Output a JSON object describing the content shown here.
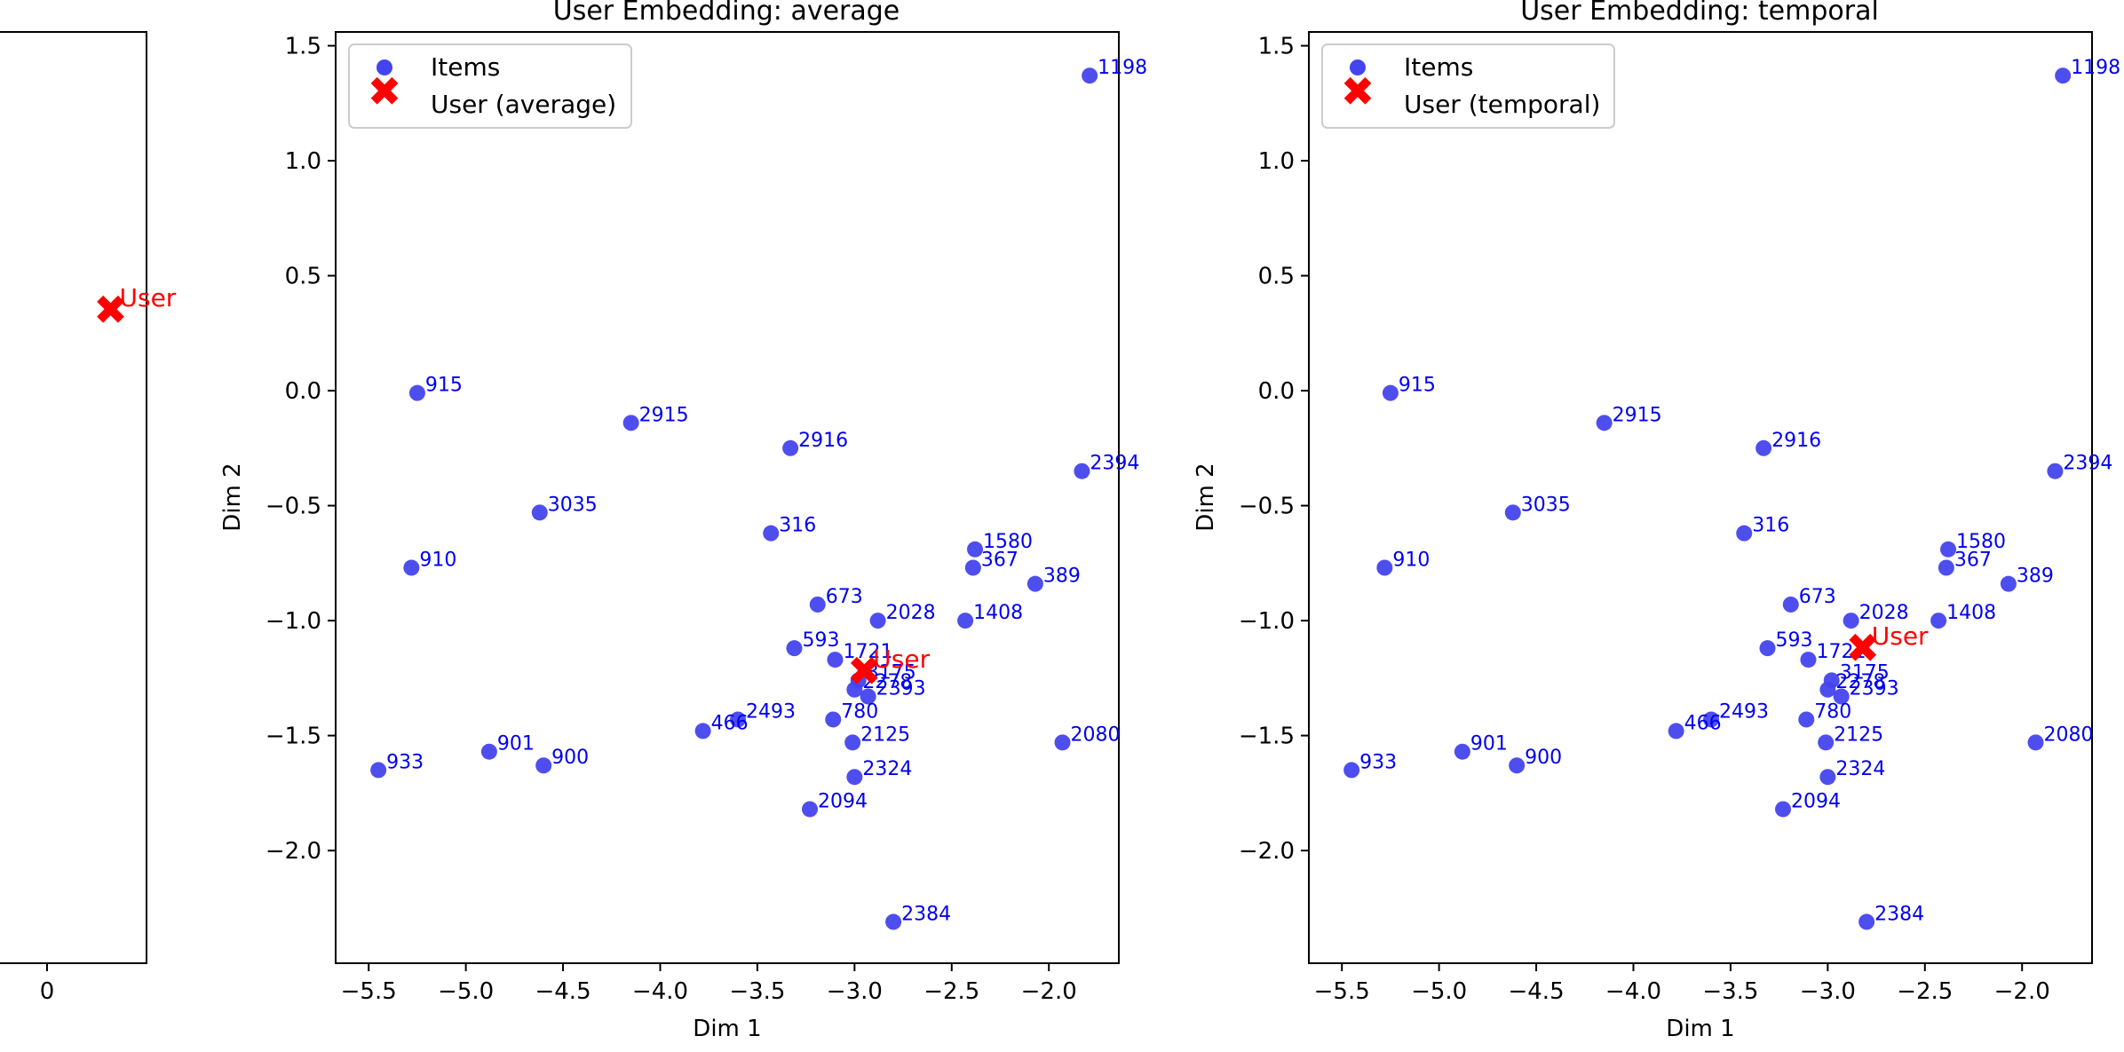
{
  "colors": {
    "points": "#4444ee",
    "point_label": "#0000ee",
    "user": "#ff0000",
    "axis": "#000000"
  },
  "chart_data": [
    {
      "type": "scatter",
      "id": "left-partial",
      "title": "",
      "user_label": "User",
      "x_ticks": [
        {
          "value": 0,
          "label": "0"
        }
      ],
      "user": {
        "x": 0.55,
        "y": 0.34
      }
    },
    {
      "type": "scatter",
      "id": "average",
      "title": "User Embedding: average",
      "xlabel": "Dim 1",
      "ylabel": "Dim 2",
      "xlim": [
        -5.67,
        -1.64
      ],
      "ylim": [
        -2.49,
        1.56
      ],
      "x_ticks": [
        {
          "value": -5.5,
          "label": "−5.5"
        },
        {
          "value": -5.0,
          "label": "−5.0"
        },
        {
          "value": -4.5,
          "label": "−4.5"
        },
        {
          "value": -4.0,
          "label": "−4.0"
        },
        {
          "value": -3.5,
          "label": "−3.5"
        },
        {
          "value": -3.0,
          "label": "−3.0"
        },
        {
          "value": -2.5,
          "label": "−2.5"
        },
        {
          "value": -2.0,
          "label": "−2.0"
        }
      ],
      "y_ticks": [
        {
          "value": 1.5,
          "label": "1.5"
        },
        {
          "value": 1.0,
          "label": "1.0"
        },
        {
          "value": 0.5,
          "label": "0.5"
        },
        {
          "value": 0.0,
          "label": "0.0"
        },
        {
          "value": -0.5,
          "label": "−0.5"
        },
        {
          "value": -1.0,
          "label": "−1.0"
        },
        {
          "value": -1.5,
          "label": "−1.5"
        },
        {
          "value": -2.0,
          "label": "−2.0"
        }
      ],
      "legend": {
        "position": "top-left",
        "items_label": "Items",
        "user_label": "User (average)"
      },
      "user_label": "User",
      "user": {
        "x": -2.95,
        "y": -1.22
      },
      "items": [
        {
          "id": "1198",
          "x": -1.79,
          "y": 1.37
        },
        {
          "id": "915",
          "x": -5.25,
          "y": -0.01
        },
        {
          "id": "2915",
          "x": -4.15,
          "y": -0.14
        },
        {
          "id": "2916",
          "x": -3.33,
          "y": -0.25
        },
        {
          "id": "2394",
          "x": -1.83,
          "y": -0.35
        },
        {
          "id": "3035",
          "x": -4.62,
          "y": -0.53
        },
        {
          "id": "316",
          "x": -3.43,
          "y": -0.62
        },
        {
          "id": "910",
          "x": -5.28,
          "y": -0.77
        },
        {
          "id": "1580",
          "x": -2.38,
          "y": -0.69
        },
        {
          "id": "367",
          "x": -2.39,
          "y": -0.77
        },
        {
          "id": "389",
          "x": -2.07,
          "y": -0.84
        },
        {
          "id": "673",
          "x": -3.19,
          "y": -0.93
        },
        {
          "id": "2028",
          "x": -2.88,
          "y": -1.0
        },
        {
          "id": "1408",
          "x": -2.43,
          "y": -1.0
        },
        {
          "id": "593",
          "x": -3.31,
          "y": -1.12
        },
        {
          "id": "1721",
          "x": -3.1,
          "y": -1.17
        },
        {
          "id": "3175",
          "x": -2.98,
          "y": -1.26
        },
        {
          "id": "2278",
          "x": -3.0,
          "y": -1.3
        },
        {
          "id": "2393",
          "x": -2.93,
          "y": -1.33
        },
        {
          "id": "2493",
          "x": -3.6,
          "y": -1.43
        },
        {
          "id": "466",
          "x": -3.78,
          "y": -1.48
        },
        {
          "id": "780",
          "x": -3.11,
          "y": -1.43
        },
        {
          "id": "2080",
          "x": -1.93,
          "y": -1.53
        },
        {
          "id": "2125",
          "x": -3.01,
          "y": -1.53
        },
        {
          "id": "901",
          "x": -4.88,
          "y": -1.57
        },
        {
          "id": "900",
          "x": -4.6,
          "y": -1.63
        },
        {
          "id": "933",
          "x": -5.45,
          "y": -1.65
        },
        {
          "id": "2324",
          "x": -3.0,
          "y": -1.68
        },
        {
          "id": "2094",
          "x": -3.23,
          "y": -1.82
        },
        {
          "id": "2384",
          "x": -2.8,
          "y": -2.31
        }
      ]
    },
    {
      "type": "scatter",
      "id": "temporal",
      "title": "User Embedding: temporal",
      "xlabel": "Dim 1",
      "ylabel": "Dim 2",
      "xlim": [
        -5.67,
        -1.64
      ],
      "ylim": [
        -2.49,
        1.56
      ],
      "x_ticks": [
        {
          "value": -5.5,
          "label": "−5.5"
        },
        {
          "value": -5.0,
          "label": "−5.0"
        },
        {
          "value": -4.5,
          "label": "−4.5"
        },
        {
          "value": -4.0,
          "label": "−4.0"
        },
        {
          "value": -3.5,
          "label": "−3.5"
        },
        {
          "value": -3.0,
          "label": "−3.0"
        },
        {
          "value": -2.5,
          "label": "−2.5"
        },
        {
          "value": -2.0,
          "label": "−2.0"
        }
      ],
      "y_ticks": [
        {
          "value": 1.5,
          "label": "1.5"
        },
        {
          "value": 1.0,
          "label": "1.0"
        },
        {
          "value": 0.5,
          "label": "0.5"
        },
        {
          "value": 0.0,
          "label": "0.0"
        },
        {
          "value": -0.5,
          "label": "−0.5"
        },
        {
          "value": -1.0,
          "label": "−1.0"
        },
        {
          "value": -1.5,
          "label": "−1.5"
        },
        {
          "value": -2.0,
          "label": "−2.0"
        }
      ],
      "legend": {
        "position": "top-left",
        "items_label": "Items",
        "user_label": "User (temporal)"
      },
      "user_label": "User",
      "user": {
        "x": -2.82,
        "y": -1.12
      },
      "items": [
        {
          "id": "1198",
          "x": -1.79,
          "y": 1.37
        },
        {
          "id": "915",
          "x": -5.25,
          "y": -0.01
        },
        {
          "id": "2915",
          "x": -4.15,
          "y": -0.14
        },
        {
          "id": "2916",
          "x": -3.33,
          "y": -0.25
        },
        {
          "id": "2394",
          "x": -1.83,
          "y": -0.35
        },
        {
          "id": "3035",
          "x": -4.62,
          "y": -0.53
        },
        {
          "id": "316",
          "x": -3.43,
          "y": -0.62
        },
        {
          "id": "910",
          "x": -5.28,
          "y": -0.77
        },
        {
          "id": "1580",
          "x": -2.38,
          "y": -0.69
        },
        {
          "id": "367",
          "x": -2.39,
          "y": -0.77
        },
        {
          "id": "389",
          "x": -2.07,
          "y": -0.84
        },
        {
          "id": "673",
          "x": -3.19,
          "y": -0.93
        },
        {
          "id": "2028",
          "x": -2.88,
          "y": -1.0
        },
        {
          "id": "1408",
          "x": -2.43,
          "y": -1.0
        },
        {
          "id": "593",
          "x": -3.31,
          "y": -1.12
        },
        {
          "id": "1721",
          "x": -3.1,
          "y": -1.17
        },
        {
          "id": "3175",
          "x": -2.98,
          "y": -1.26
        },
        {
          "id": "2278",
          "x": -3.0,
          "y": -1.3
        },
        {
          "id": "2393",
          "x": -2.93,
          "y": -1.33
        },
        {
          "id": "2493",
          "x": -3.6,
          "y": -1.43
        },
        {
          "id": "466",
          "x": -3.78,
          "y": -1.48
        },
        {
          "id": "780",
          "x": -3.11,
          "y": -1.43
        },
        {
          "id": "2080",
          "x": -1.93,
          "y": -1.53
        },
        {
          "id": "2125",
          "x": -3.01,
          "y": -1.53
        },
        {
          "id": "901",
          "x": -4.88,
          "y": -1.57
        },
        {
          "id": "900",
          "x": -4.6,
          "y": -1.63
        },
        {
          "id": "933",
          "x": -5.45,
          "y": -1.65
        },
        {
          "id": "2324",
          "x": -3.0,
          "y": -1.68
        },
        {
          "id": "2094",
          "x": -3.23,
          "y": -1.82
        },
        {
          "id": "2384",
          "x": -2.8,
          "y": -2.31
        }
      ]
    }
  ]
}
